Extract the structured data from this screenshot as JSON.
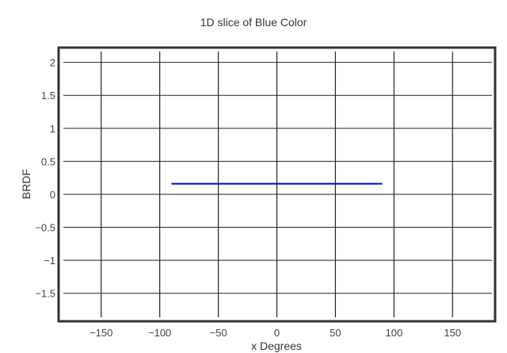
{
  "chart_data": {
    "type": "line",
    "title": "1D slice of Blue Color",
    "xlabel": "x Degrees",
    "ylabel": "BRDF",
    "xlim": [
      -185,
      185
    ],
    "ylim": [
      -1.9,
      2.2
    ],
    "xticks": [
      -150,
      -100,
      -50,
      0,
      50,
      100,
      150
    ],
    "yticks": [
      -1.5,
      -1,
      -0.5,
      0,
      0.5,
      1,
      1.5,
      2
    ],
    "xtick_labels": [
      "−150",
      "−100",
      "−50",
      "0",
      "50",
      "100",
      "150"
    ],
    "ytick_labels": [
      "−1.5",
      "−1",
      "−0.5",
      "0",
      "0.5",
      "1",
      "1.5",
      "2"
    ],
    "grid": true,
    "series": [
      {
        "color": "#0000cc",
        "x": [
          -90,
          90
        ],
        "y": [
          0.16,
          0.16
        ]
      }
    ]
  }
}
